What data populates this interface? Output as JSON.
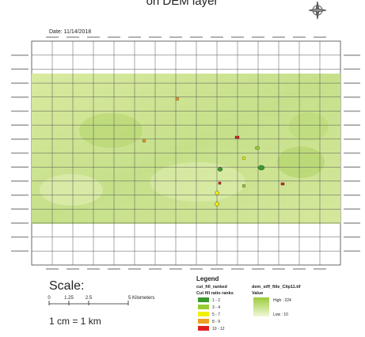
{
  "title": "on DEM layer",
  "date": "Date: 11/14/2018",
  "scale": {
    "label": "Scale:",
    "ticks": [
      "0",
      "1.25",
      "2.5",
      "5 Kilometers"
    ],
    "ratio": "1 cm = 1 km"
  },
  "legend": {
    "title": "Legend",
    "layer": "cut_fill_ranked",
    "field": "Cut fill ratio ranks",
    "classes": [
      "1 - 2",
      "3 - 4",
      "5 - 7",
      "8 - 9",
      "10 - 12"
    ],
    "raster": "dem_stff_fille_Clip11.tif",
    "value_label": "Value",
    "high": "High : 224",
    "low": "Low : 10"
  }
}
